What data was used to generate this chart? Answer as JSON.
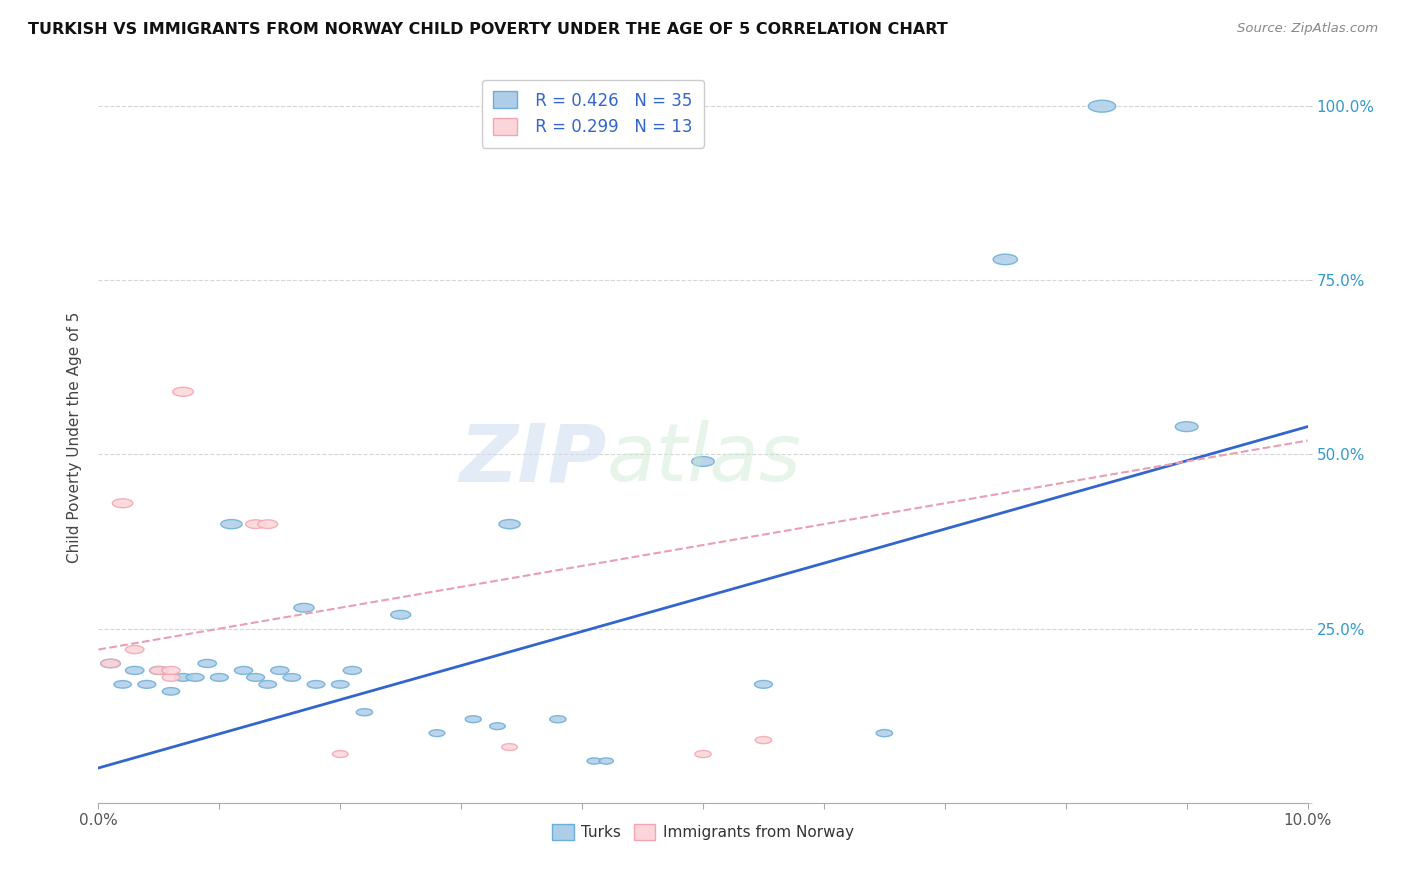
{
  "title": "TURKISH VS IMMIGRANTS FROM NORWAY CHILD POVERTY UNDER THE AGE OF 5 CORRELATION CHART",
  "source": "Source: ZipAtlas.com",
  "ylabel": "Child Poverty Under the Age of 5",
  "xlim": [
    0.0,
    0.1
  ],
  "ylim": [
    0.0,
    1.05
  ],
  "background_color": "#ffffff",
  "turks_edge_color": "#6baed6",
  "turks_fill_color": "#aecde8",
  "norway_edge_color": "#f4a4b0",
  "norway_fill_color": "#fcd5da",
  "turks_line_color": "#3366cc",
  "norway_line_color": "#e8a0b0",
  "legend_r_turks": "R = 0.426",
  "legend_n_turks": "N = 35",
  "legend_r_norway": "R = 0.299",
  "legend_n_norway": "N = 13",
  "turks_x": [
    0.001,
    0.002,
    0.003,
    0.004,
    0.005,
    0.006,
    0.007,
    0.008,
    0.009,
    0.01,
    0.011,
    0.012,
    0.013,
    0.014,
    0.015,
    0.016,
    0.017,
    0.018,
    0.02,
    0.021,
    0.022,
    0.025,
    0.028,
    0.031,
    0.033,
    0.034,
    0.038,
    0.041,
    0.042,
    0.05,
    0.055,
    0.065,
    0.075,
    0.083,
    0.09
  ],
  "turks_y": [
    0.2,
    0.17,
    0.19,
    0.17,
    0.19,
    0.16,
    0.18,
    0.18,
    0.2,
    0.18,
    0.4,
    0.19,
    0.18,
    0.17,
    0.19,
    0.18,
    0.28,
    0.17,
    0.17,
    0.19,
    0.13,
    0.27,
    0.1,
    0.12,
    0.11,
    0.4,
    0.12,
    0.06,
    0.06,
    0.49,
    0.17,
    0.1,
    0.78,
    1.0,
    0.54
  ],
  "norway_x": [
    0.001,
    0.002,
    0.003,
    0.005,
    0.006,
    0.006,
    0.007,
    0.013,
    0.014,
    0.02,
    0.034,
    0.05,
    0.055
  ],
  "norway_y": [
    0.2,
    0.43,
    0.22,
    0.19,
    0.18,
    0.19,
    0.59,
    0.4,
    0.4,
    0.07,
    0.08,
    0.07,
    0.09
  ],
  "turks_s": [
    180,
    140,
    160,
    150,
    160,
    140,
    150,
    150,
    160,
    150,
    210,
    155,
    150,
    145,
    155,
    145,
    190,
    145,
    145,
    155,
    125,
    185,
    115,
    120,
    115,
    210,
    125,
    95,
    95,
    240,
    150,
    125,
    275,
    350,
    240
  ],
  "norway_s": [
    170,
    195,
    160,
    150,
    145,
    155,
    200,
    185,
    185,
    115,
    115,
    125,
    125
  ],
  "turks_line_x0": 0.0,
  "turks_line_x1": 0.1,
  "turks_line_y0": 0.05,
  "turks_line_y1": 0.54,
  "norway_line_x0": 0.0,
  "norway_line_x1": 0.1,
  "norway_line_y0": 0.22,
  "norway_line_y1": 0.52
}
